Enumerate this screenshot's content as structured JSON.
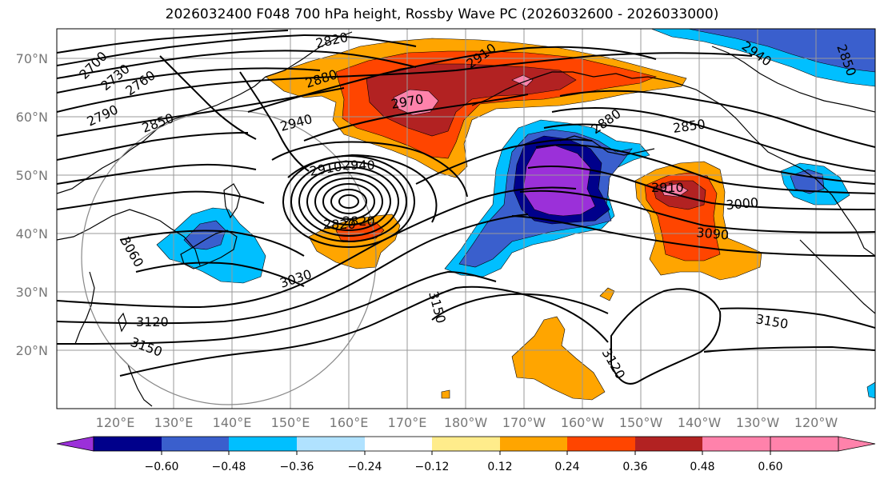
{
  "title": "2026032400 F048 700 hPa height, Rossby Wave PC (2026032600 - 2026033000)",
  "colors": {
    "n060": "#9b30d9",
    "n048": "#00008b",
    "n036": "#3a5fcd",
    "n024": "#00bfff",
    "n012": "#b0e2ff",
    "neutral": "#ffffff",
    "p012": "#ffec8b",
    "p024": "#ffa500",
    "p036": "#ff4500",
    "p048": "#b22222",
    "p060": "#ff82ab",
    "grid": "#999999",
    "coast": "#000000",
    "contour": "#000000"
  },
  "map": {
    "lat_labels": [
      "70°N",
      "60°N",
      "50°N",
      "40°N",
      "30°N",
      "20°N"
    ],
    "lon_labels": [
      "120°E",
      "130°E",
      "140°E",
      "150°E",
      "160°E",
      "170°E",
      "180°W",
      "170°W",
      "160°W",
      "150°W",
      "140°W",
      "130°W",
      "120°W"
    ]
  },
  "contour_labels": [
    "2700",
    "2730",
    "2760",
    "2790",
    "2820",
    "2850",
    "2880",
    "2910",
    "2940",
    "2970",
    "2850",
    "2880",
    "2940",
    "2850",
    "2910",
    "2940",
    "2820",
    "2820",
    "3030",
    "3060",
    "3120",
    "3150",
    "3150",
    "3120",
    "3150",
    "3000",
    "3090",
    "2910"
  ],
  "colorbar": {
    "ticks": [
      "−0.60",
      "−0.48",
      "−0.36",
      "−0.24",
      "−0.12",
      "0.12",
      "0.24",
      "0.36",
      "0.48",
      "0.60"
    ],
    "bins": [
      "n060",
      "n048",
      "n036",
      "n024",
      "n012",
      "neutral",
      "p012",
      "p024",
      "p036",
      "p048",
      "p060"
    ]
  }
}
